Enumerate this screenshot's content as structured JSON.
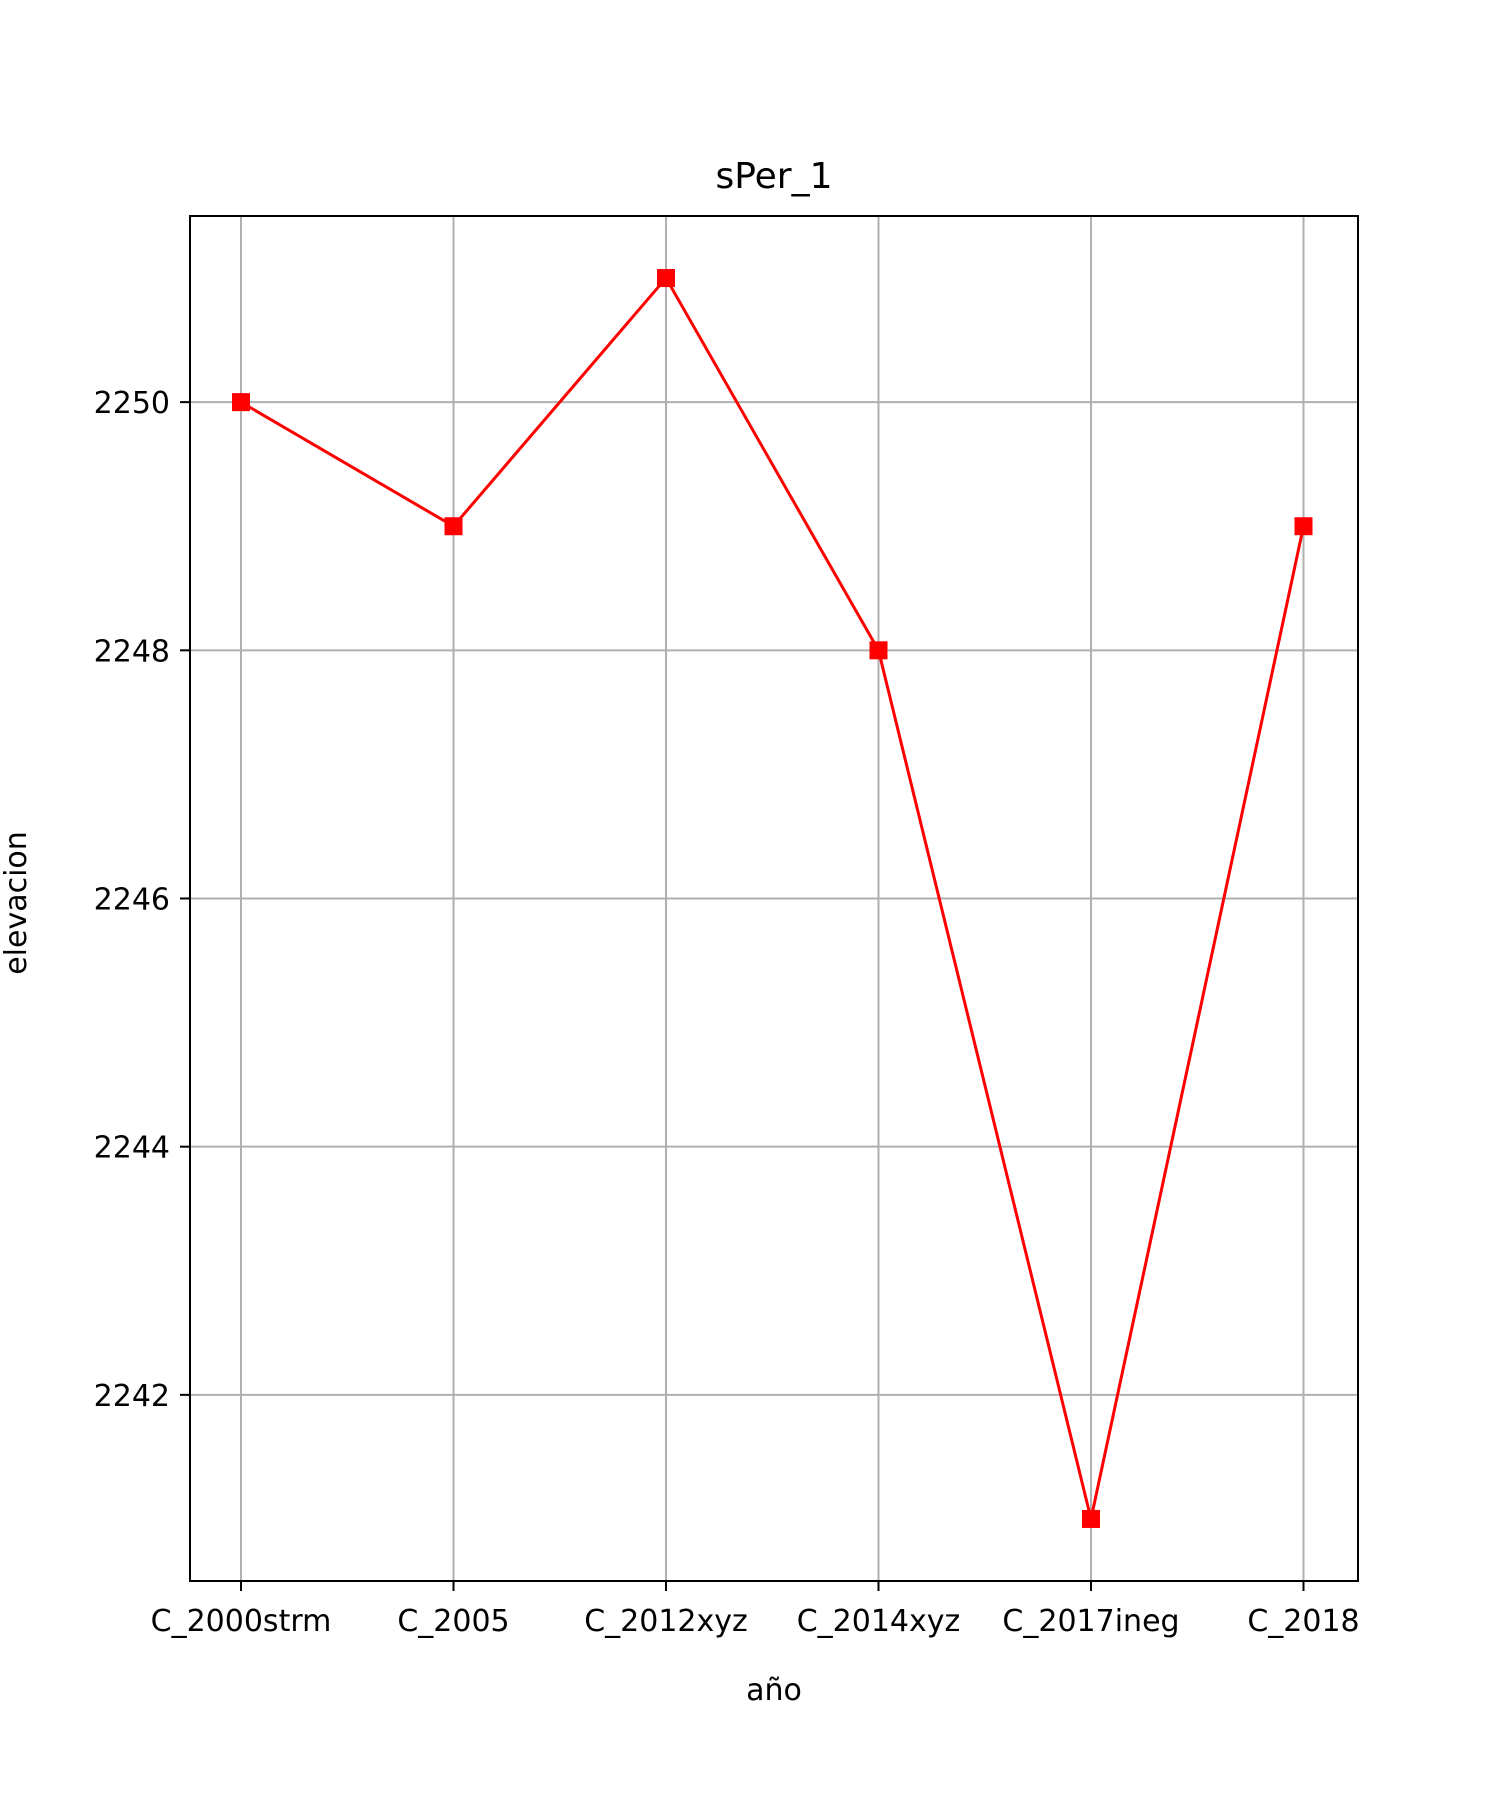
{
  "chart_data": {
    "type": "line",
    "title": "sPer_1",
    "xlabel": "año",
    "ylabel": "elevacion",
    "categories": [
      "C_2000strm",
      "C_2005",
      "C_2012xyz",
      "C_2014xyz",
      "C_2017ineg",
      "C_2018"
    ],
    "series": [
      {
        "values": [
          2250,
          2249,
          2251,
          2248,
          2241,
          2249
        ]
      }
    ],
    "ylim": [
      2240.5,
      2251.5
    ],
    "yticks": [
      2242,
      2244,
      2246,
      2248,
      2250
    ],
    "grid": true,
    "line_color": "#ff0000",
    "marker": "square"
  }
}
